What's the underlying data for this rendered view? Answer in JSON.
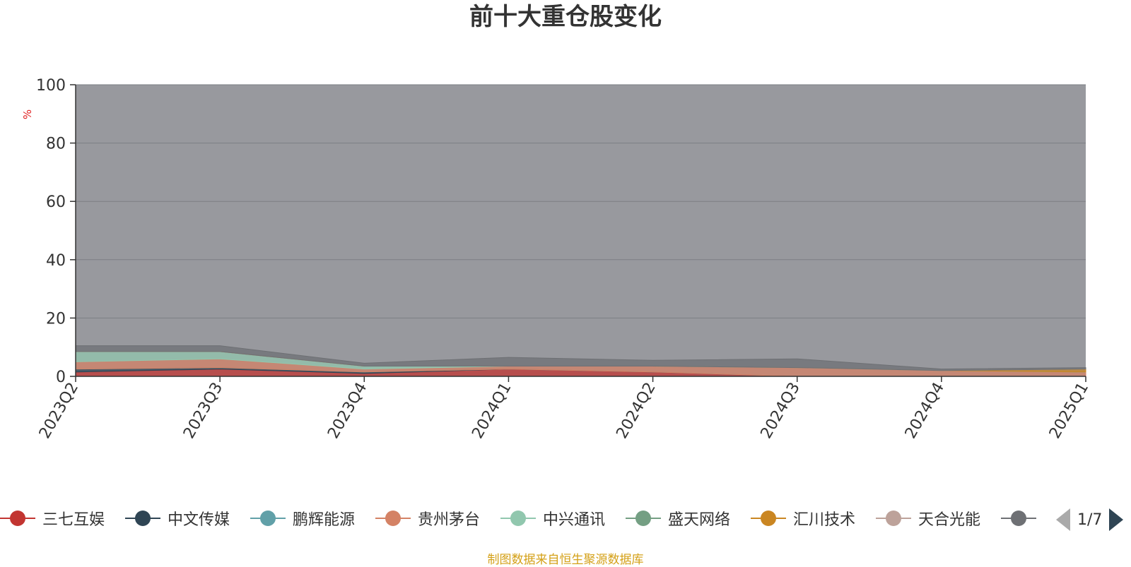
{
  "chart_data": {
    "type": "area",
    "title": "前十大重仓股变化",
    "ylabel": "%",
    "ylim": [
      0,
      100
    ],
    "yticks": [
      0,
      20,
      40,
      60,
      80,
      100
    ],
    "x": [
      "2023Q2",
      "2023Q3",
      "2023Q4",
      "2024Q1",
      "2024Q2",
      "2024Q3",
      "2024Q4",
      "2025Q1"
    ],
    "grid": true,
    "stacked": true,
    "series": [
      {
        "name": "三七互娱",
        "color": "#c23531",
        "values": [
          1.5,
          2.5,
          1.0,
          2.5,
          1.5,
          0,
          0,
          0
        ]
      },
      {
        "name": "中文传媒",
        "color": "#2f4554",
        "values": [
          1.0,
          0.5,
          0.5,
          0,
          0,
          0,
          0,
          0
        ]
      },
      {
        "name": "鹏辉能源",
        "color": "#61a0a8",
        "values": [
          0,
          0,
          0,
          0,
          0,
          0,
          0,
          0
        ]
      },
      {
        "name": "贵州茅台",
        "color": "#d48265",
        "values": [
          2.5,
          3.0,
          1.0,
          1.0,
          2.0,
          3.0,
          2.0,
          1.5
        ]
      },
      {
        "name": "中兴通讯",
        "color": "#91c7ae",
        "values": [
          3.5,
          2.5,
          1.0,
          0,
          0,
          0,
          0,
          0
        ]
      },
      {
        "name": "盛天网络",
        "color": "#749f83",
        "values": [
          0,
          0,
          0,
          0,
          0,
          0,
          0,
          0
        ]
      },
      {
        "name": "汇川技术",
        "color": "#ca8622",
        "values": [
          0,
          0,
          0,
          0,
          0,
          0,
          0,
          1.0
        ]
      },
      {
        "name": "天合光能",
        "color": "#bda29a",
        "values": [
          0,
          0,
          0,
          0,
          0,
          0,
          0,
          0
        ]
      },
      {
        "name": "",
        "color": "#6e7074",
        "values": [
          2.0,
          2.0,
          1.0,
          3.0,
          2.0,
          3.0,
          0.5,
          0.5
        ]
      }
    ]
  },
  "legend_pager": {
    "text": "1/7"
  },
  "source_note": "制图数据来自恒生聚源数据库",
  "colors": {
    "plot_background": "#98999e",
    "title": "#333333",
    "ylabel": "#e02020",
    "source": "#d4a017"
  }
}
